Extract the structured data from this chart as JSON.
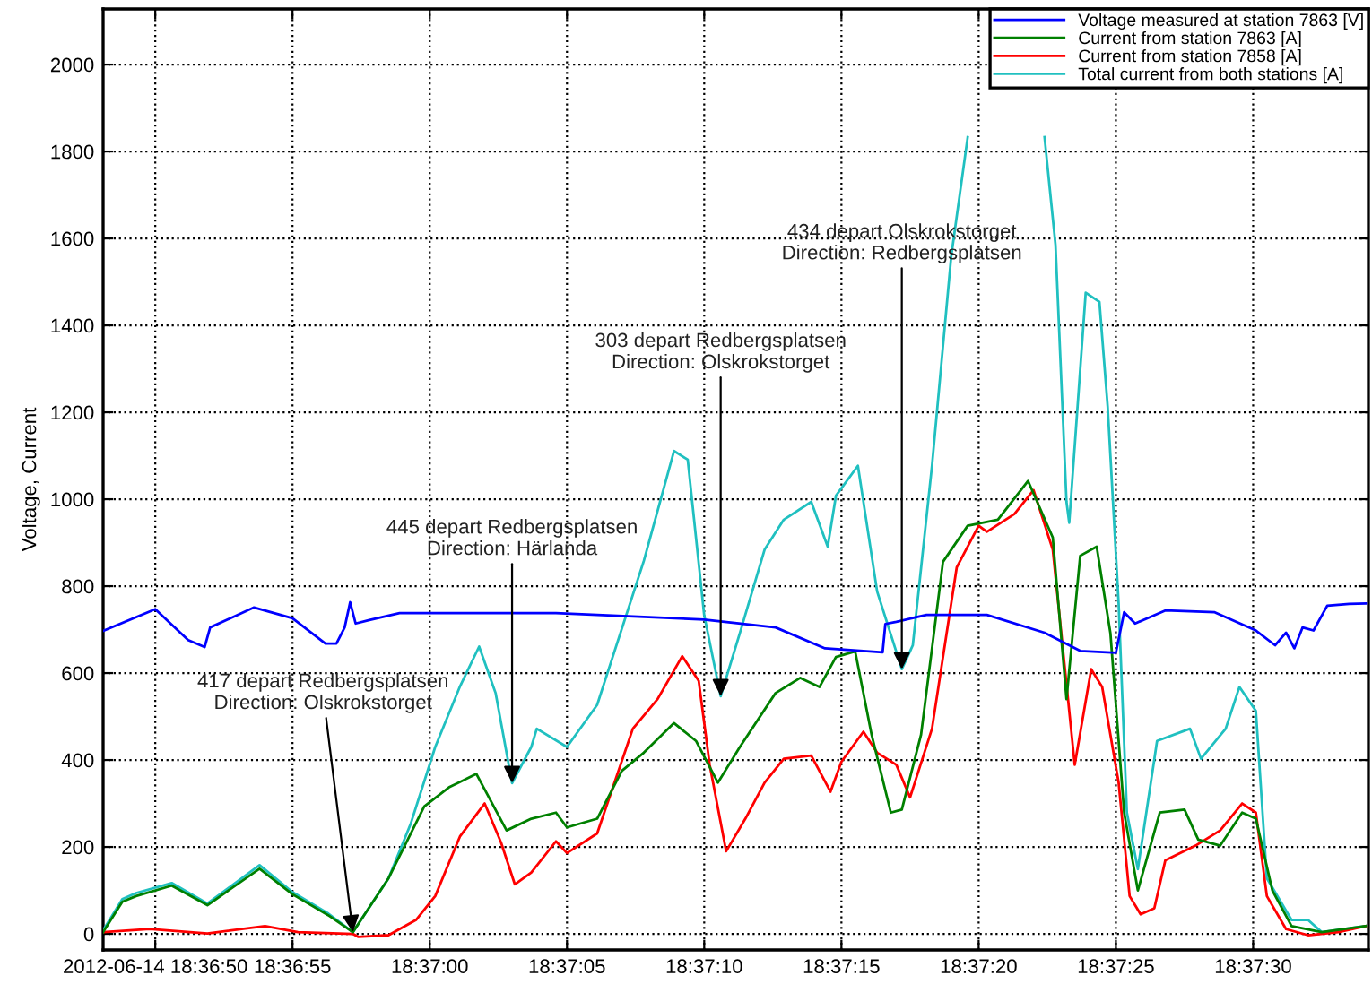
{
  "chart_data": {
    "type": "line",
    "ylabel": "Voltage, Current",
    "xlim": [
      "2012-06-14T18:36:48.1",
      "2012-06-14T18:37:34.2"
    ],
    "xticks": [
      {
        "value": "2012-06-14T18:36:50",
        "label": "2012-06-14 18:36:50"
      },
      {
        "value": "2012-06-14T18:36:55",
        "label": "18:36:55"
      },
      {
        "value": "2012-06-14T18:37:00",
        "label": "18:37:00"
      },
      {
        "value": "2012-06-14T18:37:05",
        "label": "18:37:05"
      },
      {
        "value": "2012-06-14T18:37:10",
        "label": "18:37:10"
      },
      {
        "value": "2012-06-14T18:37:15",
        "label": "18:37:15"
      },
      {
        "value": "2012-06-14T18:37:20",
        "label": "18:37:20"
      },
      {
        "value": "2012-06-14T18:37:25",
        "label": "18:37:25"
      },
      {
        "value": "2012-06-14T18:37:30",
        "label": "18:37:30"
      }
    ],
    "ylim": [
      -37,
      2128
    ],
    "yticks": [
      0,
      200,
      400,
      600,
      800,
      1000,
      1200,
      1400,
      1600,
      1800,
      2000
    ],
    "grid": true,
    "legend": "top right",
    "marker": "none",
    "line_style": "solid",
    "series": [
      {
        "name": "Voltage measured at station 7863 [V]",
        "color": "#0000ff",
        "x": [
          "2012-06-14T18:36:48.1",
          "2012-06-14T18:36:50.0",
          "2012-06-14T18:36:51.2",
          "2012-06-14T18:36:51.8",
          "2012-06-14T18:36:52.0",
          "2012-06-14T18:36:53.6",
          "2012-06-14T18:36:55.0",
          "2012-06-14T18:36:56.2",
          "2012-06-14T18:36:56.6",
          "2012-06-14T18:36:56.9",
          "2012-06-14T18:36:57.1",
          "2012-06-14T18:36:57.3",
          "2012-06-14T18:36:57.8",
          "2012-06-14T18:36:58.9",
          "2012-06-14T18:37:04.6",
          "2012-06-14T18:37:10.0",
          "2012-06-14T18:37:12.6",
          "2012-06-14T18:37:14.4",
          "2012-06-14T18:37:16.5",
          "2012-06-14T18:37:16.6",
          "2012-06-14T18:37:17.0",
          "2012-06-14T18:37:18.1",
          "2012-06-14T18:37:20.3",
          "2012-06-14T18:37:22.4",
          "2012-06-14T18:37:23.7",
          "2012-06-14T18:37:25.0",
          "2012-06-14T18:37:25.3",
          "2012-06-14T18:37:25.7",
          "2012-06-14T18:37:26.8",
          "2012-06-14T18:37:28.6",
          "2012-06-14T18:37:30.1",
          "2012-06-14T18:37:30.8",
          "2012-06-14T18:37:31.2",
          "2012-06-14T18:37:31.5",
          "2012-06-14T18:37:31.8",
          "2012-06-14T18:37:32.2",
          "2012-06-14T18:37:32.7",
          "2012-06-14T18:37:33.5",
          "2012-06-14T18:37:34.1"
        ],
        "values": [
          697,
          747,
          676,
          660,
          705,
          751,
          726,
          668,
          668,
          705,
          763,
          714,
          722,
          738,
          738,
          723,
          705,
          657,
          648,
          713,
          718,
          734,
          734,
          693,
          651,
          647,
          740,
          714,
          744,
          740,
          698,
          664,
          693,
          657,
          705,
          698,
          755,
          759,
          760
        ]
      },
      {
        "name": "Current from station 7863 [A]",
        "color": "#008000",
        "x": [
          "2012-06-14T18:36:48.1",
          "2012-06-14T18:36:48.8",
          "2012-06-14T18:36:49.3",
          "2012-06-14T18:36:50.6",
          "2012-06-14T18:36:51.9",
          "2012-06-14T18:36:53.8",
          "2012-06-14T18:36:55.0",
          "2012-06-14T18:36:56.3",
          "2012-06-14T18:36:57.2",
          "2012-06-14T18:36:58.5",
          "2012-06-14T18:36:59.8",
          "2012-06-14T18:37:00.7",
          "2012-06-14T18:37:01.7",
          "2012-06-14T18:37:02.8",
          "2012-06-14T18:37:03.7",
          "2012-06-14T18:37:04.6",
          "2012-06-14T18:37:05.0",
          "2012-06-14T18:37:06.1",
          "2012-06-14T18:37:07.0",
          "2012-06-14T18:37:07.8",
          "2012-06-14T18:37:08.9",
          "2012-06-14T18:37:09.7",
          "2012-06-14T18:37:10.5",
          "2012-06-14T18:37:11.3",
          "2012-06-14T18:37:12.6",
          "2012-06-14T18:37:13.5",
          "2012-06-14T18:37:14.2",
          "2012-06-14T18:37:14.8",
          "2012-06-14T18:37:15.5",
          "2012-06-14T18:37:16.1",
          "2012-06-14T18:37:16.8",
          "2012-06-14T18:37:17.2",
          "2012-06-14T18:37:17.9",
          "2012-06-14T18:37:18.7",
          "2012-06-14T18:37:19.6",
          "2012-06-14T18:37:20.7",
          "2012-06-14T18:37:21.8",
          "2012-06-14T18:37:22.7",
          "2012-06-14T18:37:23.2",
          "2012-06-14T18:37:23.7",
          "2012-06-14T18:37:24.3",
          "2012-06-14T18:37:24.8",
          "2012-06-14T18:37:25.3",
          "2012-06-14T18:37:25.8",
          "2012-06-14T18:37:26.6",
          "2012-06-14T18:37:27.5",
          "2012-06-14T18:37:28.0",
          "2012-06-14T18:37:28.8",
          "2012-06-14T18:37:29.6",
          "2012-06-14T18:37:30.1",
          "2012-06-14T18:37:30.7",
          "2012-06-14T18:37:31.4",
          "2012-06-14T18:37:32.5",
          "2012-06-14T18:37:34.1"
        ],
        "values": [
          4,
          74,
          87,
          111,
          66,
          150,
          91,
          43,
          4,
          128,
          293,
          337,
          368,
          238,
          265,
          279,
          245,
          265,
          375,
          417,
          485,
          444,
          348,
          430,
          554,
          589,
          568,
          637,
          650,
          458,
          279,
          286,
          458,
          856,
          939,
          953,
          1042,
          912,
          540,
          870,
          891,
          692,
          279,
          100,
          279,
          286,
          217,
          203,
          279,
          265,
          100,
          18,
          4,
          18
        ]
      },
      {
        "name": "Current from station 7858 [A]",
        "color": "#ff0000",
        "x": [
          "2012-06-14T18:36:48.1",
          "2012-06-14T18:36:49.8",
          "2012-06-14T18:36:51.9",
          "2012-06-14T18:36:54.0",
          "2012-06-14T18:36:55.2",
          "2012-06-14T18:36:57.2",
          "2012-06-14T18:36:57.4",
          "2012-06-14T18:36:58.5",
          "2012-06-14T18:36:59.5",
          "2012-06-14T18:37:00.2",
          "2012-06-14T18:37:01.1",
          "2012-06-14T18:37:02.0",
          "2012-06-14T18:37:02.6",
          "2012-06-14T18:37:03.1",
          "2012-06-14T18:37:03.7",
          "2012-06-14T18:37:04.6",
          "2012-06-14T18:37:05.0",
          "2012-06-14T18:37:06.1",
          "2012-06-14T18:37:07.4",
          "2012-06-14T18:37:08.3",
          "2012-06-14T18:37:09.2",
          "2012-06-14T18:37:09.8",
          "2012-06-14T18:37:10.2",
          "2012-06-14T18:37:10.8",
          "2012-06-14T18:37:11.5",
          "2012-06-14T18:37:12.2",
          "2012-06-14T18:37:12.9",
          "2012-06-14T18:37:13.9",
          "2012-06-14T18:37:14.6",
          "2012-06-14T18:37:15.0",
          "2012-06-14T18:37:15.8",
          "2012-06-14T18:37:16.3",
          "2012-06-14T18:37:17.0",
          "2012-06-14T18:37:17.5",
          "2012-06-14T18:37:18.3",
          "2012-06-14T18:37:19.2",
          "2012-06-14T18:37:20.0",
          "2012-06-14T18:37:20.3",
          "2012-06-14T18:37:21.3",
          "2012-06-14T18:37:22.0",
          "2012-06-14T18:37:22.7",
          "2012-06-14T18:37:23.5",
          "2012-06-14T18:37:24.1",
          "2012-06-14T18:37:24.5",
          "2012-06-14T18:37:25.1",
          "2012-06-14T18:37:25.5",
          "2012-06-14T18:37:25.9",
          "2012-06-14T18:37:26.4",
          "2012-06-14T18:37:26.8",
          "2012-06-14T18:37:27.9",
          "2012-06-14T18:37:28.8",
          "2012-06-14T18:37:29.6",
          "2012-06-14T18:37:30.1",
          "2012-06-14T18:37:30.5",
          "2012-06-14T18:37:31.2",
          "2012-06-14T18:37:32.0",
          "2012-06-14T18:37:33.1",
          "2012-06-14T18:37:34.1"
        ],
        "values": [
          4,
          11,
          1,
          18,
          4,
          0,
          -7,
          -3,
          32,
          87,
          224,
          300,
          210,
          114,
          141,
          213,
          186,
          231,
          472,
          540,
          639,
          582,
          389,
          190,
          265,
          348,
          403,
          410,
          327,
          396,
          465,
          417,
          389,
          314,
          472,
          843,
          939,
          925,
          966,
          1021,
          884,
          389,
          609,
          568,
          348,
          87,
          45,
          59,
          169,
          203,
          238,
          300,
          279,
          87,
          11,
          -3,
          4,
          18
        ]
      },
      {
        "name": "Total current from both stations [A]",
        "color": "#20c0c0",
        "x": [
          "2012-06-14T18:36:48.1",
          "2012-06-14T18:36:48.8",
          "2012-06-14T18:36:49.3",
          "2012-06-14T18:36:50.6",
          "2012-06-14T18:36:51.9",
          "2012-06-14T18:36:53.8",
          "2012-06-14T18:36:55.0",
          "2012-06-14T18:36:56.3",
          "2012-06-14T18:36:57.2",
          "2012-06-14T18:36:58.5",
          "2012-06-14T18:36:59.3",
          "2012-06-14T18:37:00.2",
          "2012-06-14T18:37:01.1",
          "2012-06-14T18:37:01.8",
          "2012-06-14T18:37:02.4",
          "2012-06-14T18:37:03.0",
          "2012-06-14T18:37:03.7",
          "2012-06-14T18:37:03.9",
          "2012-06-14T18:37:05.0",
          "2012-06-14T18:37:06.1",
          "2012-06-14T18:37:07.8",
          "2012-06-14T18:37:08.9",
          "2012-06-14T18:37:09.4",
          "2012-06-14T18:37:10.0",
          "2012-06-14T18:37:10.6",
          "2012-06-14T18:37:11.3",
          "2012-06-14T18:37:12.2",
          "2012-06-14T18:37:12.9",
          "2012-06-14T18:37:13.9",
          "2012-06-14T18:37:14.5",
          "2012-06-14T18:37:14.8",
          "2012-06-14T18:37:15.6",
          "2012-06-14T18:37:16.3",
          "2012-06-14T18:37:17.2",
          "2012-06-14T18:37:17.6",
          "2012-06-14T18:37:18.3",
          "2012-06-14T18:37:19.0",
          "2012-06-14T18:37:19.6",
          "2012-06-14T18:37:21.0",
          "2012-06-14T18:37:22.4",
          "2012-06-14T18:37:22.8",
          "2012-06-14T18:37:23.2",
          "2012-06-14T18:37:23.3",
          "2012-06-14T18:37:23.9",
          "2012-06-14T18:37:24.4",
          "2012-06-14T18:37:24.7",
          "2012-06-14T18:37:25.1",
          "2012-06-14T18:37:25.4",
          "2012-06-14T18:37:25.8",
          "2012-06-14T18:37:26.5",
          "2012-06-14T18:37:27.7",
          "2012-06-14T18:37:28.1",
          "2012-06-14T18:37:29.0",
          "2012-06-14T18:37:29.5",
          "2012-06-14T18:37:30.1",
          "2012-06-14T18:37:30.5",
          "2012-06-14T18:37:31.4",
          "2012-06-14T18:37:32.0",
          "2012-06-14T18:37:32.5",
          "2012-06-14T18:37:34.1"
        ],
        "values": [
          8,
          80,
          94,
          117,
          70,
          158,
          96,
          47,
          4,
          128,
          252,
          430,
          569,
          661,
          554,
          347,
          430,
          472,
          430,
          527,
          858,
          1111,
          1091,
          733,
          547,
          692,
          884,
          953,
          994,
          891,
          1008,
          1077,
          788,
          609,
          664,
          1077,
          1559,
          1833,
          null,
          1833,
          1585,
          994,
          946,
          1475,
          1454,
          1214,
          760,
          279,
          149,
          444,
          472,
          403,
          472,
          568,
          513,
          128,
          32,
          32,
          4,
          18
        ]
      }
    ],
    "annotations": [
      {
        "text": "417 depart Redbergsplatsen\nDirection: Olskrokstorget",
        "x": "2012-06-14T18:36:57.2",
        "y": 4
      },
      {
        "text": "445 depart Redbergsplatsen\nDirection: Härlanda",
        "x": "2012-06-14T18:37:03.0",
        "y": 347
      },
      {
        "text": "303 depart Redbergsplatsen\nDirection: Olskrokstorget",
        "x": "2012-06-14T18:37:10.6",
        "y": 547
      },
      {
        "text": "434 depart Olskrokstorget\nDirection: Redbergsplatsen",
        "x": "2012-06-14T18:37:17.2",
        "y": 609
      }
    ]
  }
}
